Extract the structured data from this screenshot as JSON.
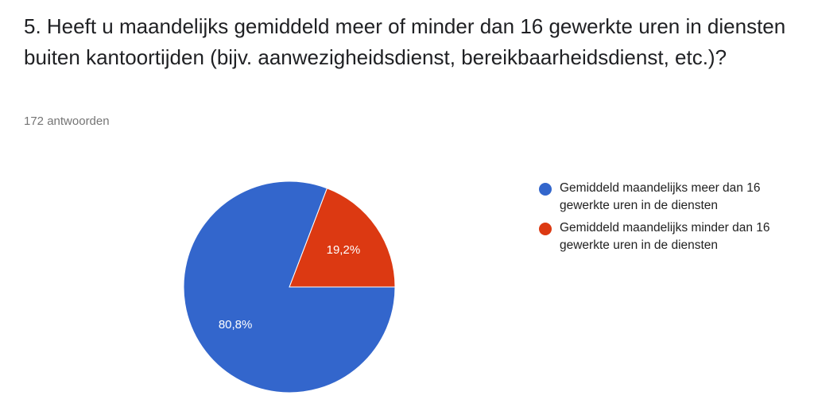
{
  "question": {
    "title": "5. Heeft u maandelijks gemiddeld meer of minder dan 16 gewerkte uren in diensten buiten kantoortijden (bijv. aanwezigheidsdienst, bereikbaarheidsdienst, etc.)?",
    "response_count": "172 antwoorden"
  },
  "chart_data": {
    "type": "pie",
    "title": "5. Heeft u maandelijks gemiddeld meer of minder dan 16 gewerkte uren in diensten buiten kantoortijden (bijv. aanwezigheidsdienst, bereikbaarheidsdienst, etc.)?",
    "categories": [
      "Gemiddeld maandelijks meer dan 16 gewerkte uren in de diensten",
      "Gemiddeld maandelijks minder dan 16 gewerkte uren in de diensten"
    ],
    "values": [
      80.8,
      19.2
    ],
    "labels": [
      "80,8%",
      "19,2%"
    ],
    "colors": [
      "#3366cc",
      "#dc3912"
    ],
    "legend_position": "right"
  }
}
